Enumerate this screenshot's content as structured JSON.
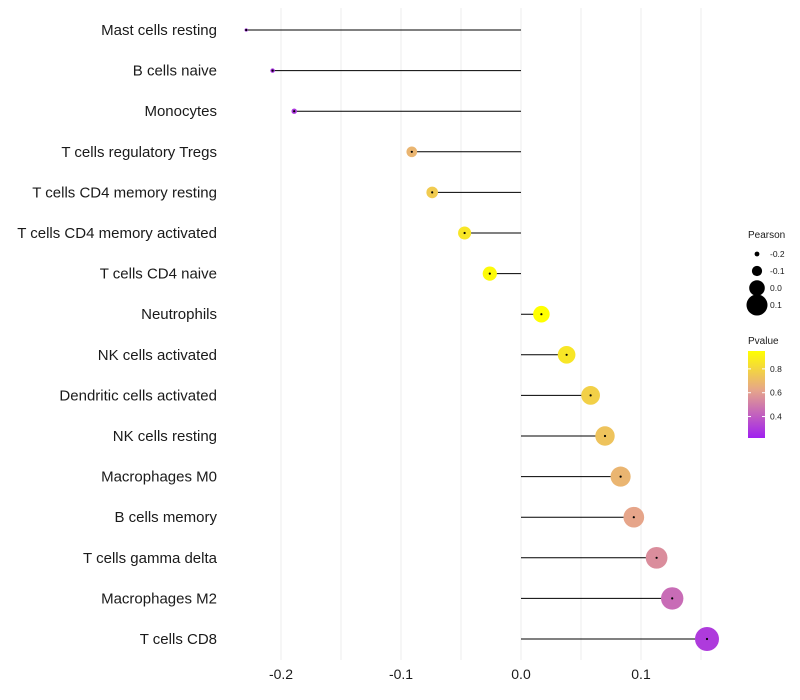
{
  "chart_data": {
    "type": "lollipop",
    "title": "",
    "xlabel": "",
    "ylabel": "",
    "xlim": [
      -0.24,
      0.165
    ],
    "x_ticks": [
      -0.2,
      -0.1,
      0.0,
      0.1
    ],
    "x_tick_labels": [
      "-0.2",
      "-0.1",
      "0.0",
      "0.1"
    ],
    "grid": true,
    "categories": [
      "Mast cells resting",
      "B cells naive",
      "Monocytes",
      "T cells regulatory  Tregs",
      "T cells CD4 memory resting",
      "T cells CD4 memory activated",
      "T cells CD4 naive",
      "Neutrophils",
      "NK cells activated",
      "Dendritic cells activated",
      "NK cells resting",
      "Macrophages M0",
      "B cells memory",
      "T cells gamma delta",
      "Macrophages M2",
      "T cells CD8"
    ],
    "pearson": [
      -0.229,
      -0.207,
      -0.189,
      -0.091,
      -0.074,
      -0.047,
      -0.026,
      0.017,
      0.038,
      0.058,
      0.07,
      0.083,
      0.094,
      0.113,
      0.126,
      0.155
    ],
    "pvalue": [
      0.25,
      0.27,
      0.29,
      0.68,
      0.76,
      0.86,
      0.93,
      0.97,
      0.86,
      0.78,
      0.73,
      0.68,
      0.62,
      0.55,
      0.45,
      0.3
    ],
    "legend": {
      "position": "right",
      "size_title": "Pearson",
      "size_values": [
        -0.2,
        -0.1,
        0.0,
        0.1
      ],
      "size_labels": [
        "-0.2",
        "-0.1",
        "0.0",
        "0.1"
      ],
      "color_title": "Pvalue",
      "color_ticks": [
        0.4,
        0.6,
        0.8
      ],
      "color_tick_labels": [
        "0.4",
        "0.6",
        "0.8"
      ],
      "color_range": [
        0.22,
        0.95
      ],
      "color_low": "#a020f0",
      "color_mid": "#e6a58a",
      "color_high": "#ffff00"
    }
  }
}
